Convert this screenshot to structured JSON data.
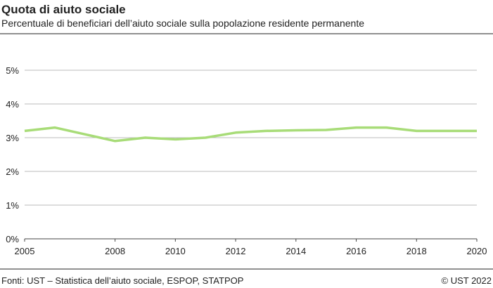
{
  "chart_data": {
    "type": "line",
    "title": "Quota di aiuto sociale",
    "subtitle": "Percentuale di beneficiari dell’aiuto sociale sulla popolazione residente permanente",
    "source": "Fonti: UST – Statistica dell’aiuto sociale, ESPOP, STATPOP",
    "copyright": "© UST 2022",
    "x": [
      2005,
      2006,
      2007,
      2008,
      2009,
      2010,
      2011,
      2012,
      2013,
      2014,
      2015,
      2016,
      2017,
      2018,
      2019,
      2020
    ],
    "series": [
      {
        "color": "#a8dc78",
        "values": [
          3.2,
          3.3,
          3.1,
          2.9,
          3.0,
          2.95,
          3.0,
          3.15,
          3.2,
          3.22,
          3.23,
          3.3,
          3.3,
          3.2,
          3.2,
          3.2
        ]
      }
    ],
    "xlim": [
      2005,
      2020
    ],
    "xticks": [
      2005,
      2008,
      2010,
      2012,
      2014,
      2016,
      2018,
      2020
    ],
    "ylim": [
      0,
      5
    ],
    "yticks": [
      {
        "value": 0,
        "label": "0%"
      },
      {
        "value": 1,
        "label": "1%"
      },
      {
        "value": 2,
        "label": "2%"
      },
      {
        "value": 3,
        "label": "3%"
      },
      {
        "value": 4,
        "label": "4%"
      },
      {
        "value": 5,
        "label": "5%"
      }
    ],
    "grid": true
  }
}
